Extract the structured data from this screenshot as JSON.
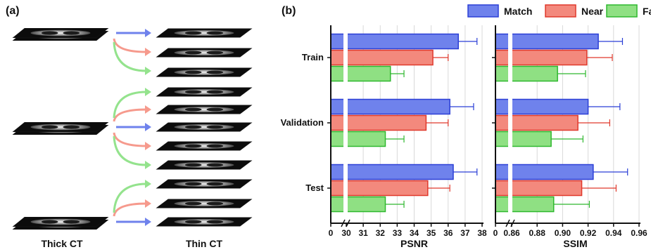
{
  "panel_a": {
    "label": "(a)",
    "thick_label": "Thick CT",
    "thin_label": "Thin CT"
  },
  "panel_b": {
    "label": "(b)"
  },
  "colors": {
    "Match": {
      "fill": "#6f82ec",
      "stroke": "#2b3fd6"
    },
    "Near": {
      "fill": "#f3897d",
      "stroke": "#e0392c"
    },
    "Far": {
      "fill": "#8fe083",
      "stroke": "#2fb82f"
    },
    "slice_border": "#111111"
  },
  "chart_data": [
    {
      "type": "bar",
      "orientation": "horizontal",
      "xlabel": "PSNR",
      "ylabel": "",
      "categories": [
        "Train",
        "Validation",
        "Test"
      ],
      "xlim": [
        0,
        38
      ],
      "axis_break": [
        0,
        30
      ],
      "ticks": [
        "0",
        "30",
        "31",
        "32",
        "33",
        "34",
        "35",
        "36",
        "37",
        "38"
      ],
      "grid": true,
      "legend": "top-right",
      "series": [
        {
          "name": "Match",
          "values": [
            36.6,
            36.1,
            36.3
          ],
          "errors": [
            1.1,
            1.4,
            1.4
          ]
        },
        {
          "name": "Near",
          "values": [
            35.1,
            34.7,
            34.8
          ],
          "errors": [
            0.9,
            1.3,
            1.3
          ]
        },
        {
          "name": "Far",
          "values": [
            32.6,
            32.3,
            32.3
          ],
          "errors": [
            0.8,
            1.1,
            1.1
          ]
        }
      ]
    },
    {
      "type": "bar",
      "orientation": "horizontal",
      "xlabel": "SSIM",
      "ylabel": "",
      "categories": [
        "Train",
        "Validation",
        "Test"
      ],
      "xlim": [
        0,
        0.96
      ],
      "axis_break": [
        0,
        0.86
      ],
      "ticks": [
        "0",
        "0.86",
        "0.88",
        "0.90",
        "0.92",
        "0.94",
        "0.96"
      ],
      "grid": true,
      "series": [
        {
          "name": "Match",
          "values": [
            0.928,
            0.92,
            0.924
          ],
          "errors": [
            0.019,
            0.025,
            0.027
          ]
        },
        {
          "name": "Near",
          "values": [
            0.919,
            0.912,
            0.915
          ],
          "errors": [
            0.02,
            0.025,
            0.027
          ]
        },
        {
          "name": "Far",
          "values": [
            0.896,
            0.891,
            0.893
          ],
          "errors": [
            0.022,
            0.025,
            0.028
          ]
        }
      ]
    }
  ]
}
